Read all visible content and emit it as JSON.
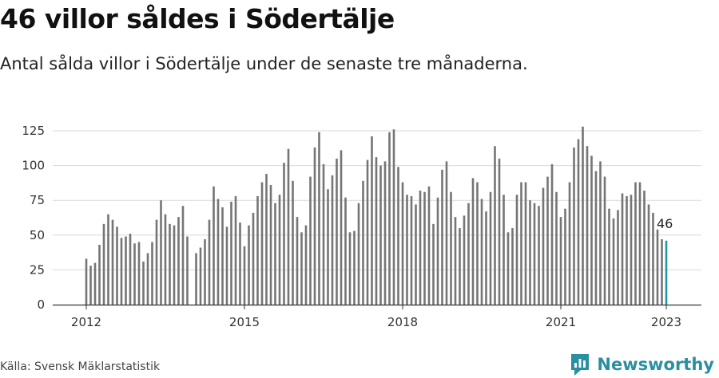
{
  "header": {
    "title": "46 villor såldes i Södertälje",
    "subtitle": "Antal sålda villor i Södertälje under de senaste tre månaderna."
  },
  "footer": {
    "source": "Källa: Svensk Mäklarstatistik",
    "brand": "Newsworthy"
  },
  "colors": {
    "bar": "#757575",
    "highlight": "#1b9aa8",
    "grid": "#d9d9d9",
    "axis": "#333333",
    "brand": "#2a8fa0"
  },
  "icons": {
    "brand_logo": "newsworthy-logo-icon"
  },
  "chart_data": {
    "type": "bar",
    "title": "46 villor såldes i Södertälje",
    "subtitle": "Antal sålda villor i Södertälje under de senaste tre månaderna.",
    "x_start": "2012-01",
    "x_ticks": [
      "2012",
      "2015",
      "2018",
      "2021",
      "2023"
    ],
    "y_ticks": [
      0,
      25,
      50,
      75,
      100,
      125
    ],
    "ylim": [
      0,
      130
    ],
    "grid": true,
    "annotation": {
      "label": "46",
      "value": 46,
      "month": "2023-01"
    },
    "values": [
      33,
      28,
      30,
      43,
      58,
      65,
      61,
      56,
      48,
      49,
      51,
      44,
      45,
      31,
      37,
      45,
      61,
      75,
      65,
      58,
      57,
      63,
      71,
      49,
      null,
      37,
      41,
      47,
      61,
      85,
      76,
      70,
      56,
      74,
      78,
      59,
      42,
      57,
      66,
      78,
      88,
      94,
      86,
      73,
      79,
      102,
      112,
      89,
      63,
      52,
      57,
      92,
      113,
      124,
      101,
      83,
      93,
      105,
      111,
      77,
      52,
      53,
      73,
      89,
      104,
      121,
      106,
      100,
      103,
      124,
      126,
      99,
      88,
      79,
      78,
      72,
      82,
      81,
      85,
      58,
      77,
      97,
      103,
      81,
      63,
      55,
      64,
      73,
      91,
      88,
      76,
      67,
      81,
      114,
      105,
      79,
      52,
      55,
      79,
      88,
      88,
      75,
      73,
      71,
      84,
      92,
      101,
      81,
      63,
      69,
      88,
      113,
      119,
      128,
      114,
      107,
      96,
      103,
      92,
      69,
      62,
      68,
      80,
      78,
      79,
      88,
      88,
      82,
      72,
      66,
      54,
      47,
      46
    ]
  }
}
